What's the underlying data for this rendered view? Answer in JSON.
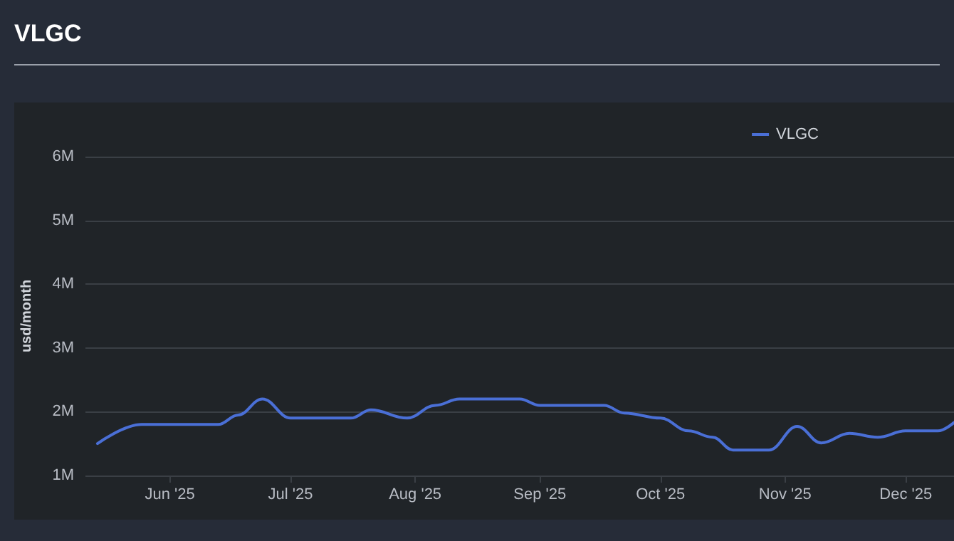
{
  "chart_data": {
    "type": "line",
    "title": "VLGC",
    "ylabel": "usd/month",
    "x": [
      "2025-05-14",
      "2025-05-25",
      "2025-06-13",
      "2025-06-18",
      "2025-06-24",
      "2025-07-01",
      "2025-07-16",
      "2025-07-21",
      "2025-07-30",
      "2025-08-06",
      "2025-08-12",
      "2025-08-27",
      "2025-09-01",
      "2025-09-17",
      "2025-09-22",
      "2025-10-01",
      "2025-10-08",
      "2025-10-14",
      "2025-10-19",
      "2025-10-28",
      "2025-11-04",
      "2025-11-10",
      "2025-11-17",
      "2025-11-24",
      "2025-12-01",
      "2025-12-09",
      "2025-12-13"
    ],
    "series": [
      {
        "name": "VLGC",
        "color": "#4a6fd6",
        "values": [
          1500000,
          1800000,
          1800000,
          1950000,
          2200000,
          1900000,
          1900000,
          2030000,
          1900000,
          2100000,
          2200000,
          2200000,
          2100000,
          2100000,
          1980000,
          1900000,
          1700000,
          1600000,
          1400000,
          1400000,
          1770000,
          1510000,
          1660000,
          1600000,
          1700000,
          1700000,
          1830000
        ]
      }
    ],
    "xlim": [
      "2025-05-11",
      "2025-12-13"
    ],
    "xticks": [
      {
        "value": "2025-06-01",
        "label": "Jun '25"
      },
      {
        "value": "2025-07-01",
        "label": "Jul '25"
      },
      {
        "value": "2025-08-01",
        "label": "Aug '25"
      },
      {
        "value": "2025-09-01",
        "label": "Sep '25"
      },
      {
        "value": "2025-10-01",
        "label": "Oct '25"
      },
      {
        "value": "2025-11-01",
        "label": "Nov '25"
      },
      {
        "value": "2025-12-01",
        "label": "Dec '25"
      }
    ],
    "ylim": [
      1000000,
      6000000
    ],
    "yticks": [
      {
        "value": 1000000,
        "label": "1M"
      },
      {
        "value": 2000000,
        "label": "2M"
      },
      {
        "value": 3000000,
        "label": "3M"
      },
      {
        "value": 4000000,
        "label": "4M"
      },
      {
        "value": 5000000,
        "label": "5M"
      },
      {
        "value": 6000000,
        "label": "6M"
      }
    ],
    "grid": "y",
    "legend": "top right",
    "marker": "none",
    "line_style": "solid"
  }
}
